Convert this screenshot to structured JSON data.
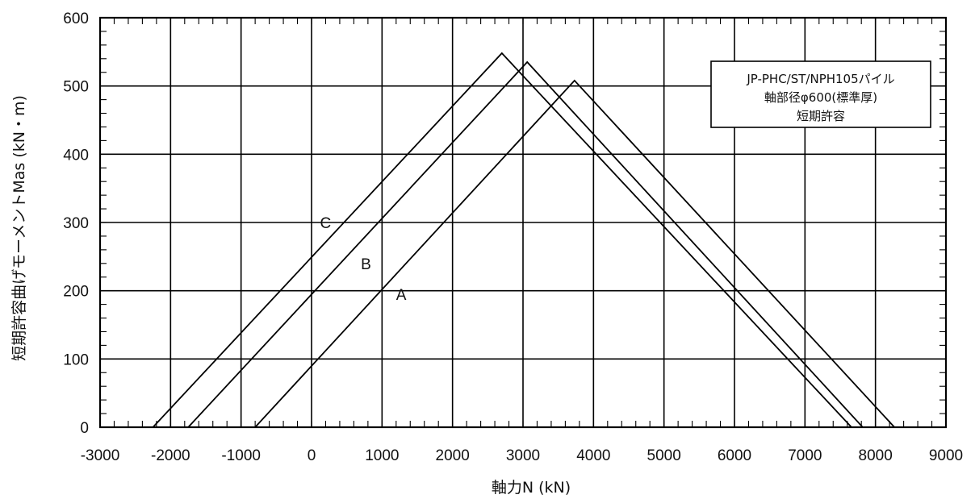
{
  "chart_data": {
    "type": "line",
    "xlabel": "軸力N (kN)",
    "ylabel": "短期許容曲げモーメントMas (kN・m)",
    "xlim": [
      -3000,
      9000
    ],
    "ylim": [
      0,
      600
    ],
    "x_ticks": [
      "-3000",
      "-2000",
      "-1000",
      "0",
      "1000",
      "2000",
      "3000",
      "4000",
      "5000",
      "6000",
      "7000",
      "8000",
      "9000"
    ],
    "y_ticks": [
      "0",
      "100",
      "200",
      "300",
      "400",
      "500",
      "600"
    ],
    "grid": true,
    "legend_box": {
      "lines": [
        "JP-PHC/ST/NPH105パイル",
        "軸部径φ600(標準厚)",
        "短期許容"
      ],
      "placement": "top-right"
    },
    "series": [
      {
        "name": "A",
        "x": [
          -800,
          3730,
          8270
        ],
        "y": [
          0,
          508,
          0
        ],
        "label_at": [
          1200,
          195
        ]
      },
      {
        "name": "B",
        "x": [
          -1750,
          3060,
          7820
        ],
        "y": [
          0,
          535,
          0
        ],
        "label_at": [
          700,
          240
        ]
      },
      {
        "name": "C",
        "x": [
          -2250,
          2700,
          7660
        ],
        "y": [
          0,
          548,
          0
        ],
        "label_at": [
          120,
          300
        ]
      }
    ]
  }
}
